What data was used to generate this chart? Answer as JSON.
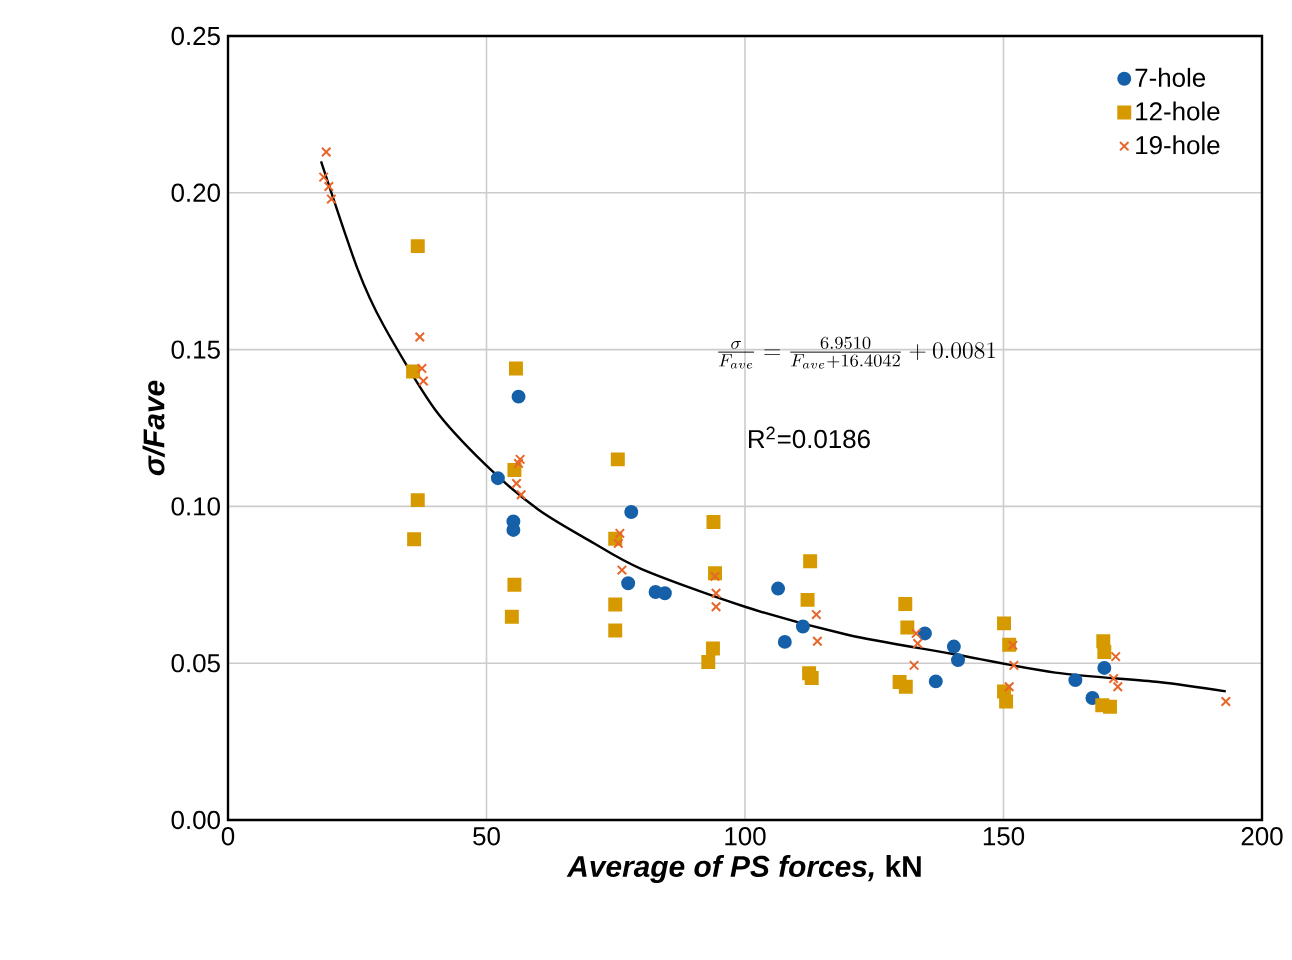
{
  "chart_data": {
    "type": "scatter",
    "xlabel": "*Average of PS forces,* kN",
    "ylabel": "σ/Fave",
    "xlim": [
      0,
      200
    ],
    "xticks": [
      0,
      50,
      100,
      150,
      200
    ],
    "ylim": [
      0,
      0.25
    ],
    "yticks": [
      {
        "value": 0,
        "label": "0.00"
      },
      {
        "value": 0.05,
        "label": "0.05"
      },
      {
        "value": 0.1,
        "label": "0.10"
      },
      {
        "value": 0.15,
        "label": "0.15"
      },
      {
        "value": 0.2,
        "label": "0.20"
      },
      {
        "value": 0.25,
        "label": "0.25"
      }
    ],
    "grid": true,
    "legend": "top right",
    "annotations": [
      "\\frac{\\sigma}{F_{ave}}=\\frac{6.9510}{F_{ave}+16.4042}+0.0081",
      "R$^{2}$=0.0186"
    ],
    "series": [
      {
        "name": "7-hole",
        "marker": "circle",
        "color": "#1560a8",
        "x": [
          56.2,
          52.2,
          55.2,
          55.2,
          78,
          77.4,
          82.7,
          84.5,
          106.4,
          107.7,
          111.2,
          134.8,
          136.9,
          140.4,
          141.2,
          163.9,
          167.2,
          169.5
        ],
        "values": [
          0.135,
          0.109,
          0.0952,
          0.0925,
          0.0982,
          0.0755,
          0.0727,
          0.0723,
          0.0738,
          0.0568,
          0.0617,
          0.0595,
          0.0442,
          0.0553,
          0.051,
          0.0446,
          0.0389,
          0.0485
        ]
      },
      {
        "name": "12-hole",
        "marker": "square",
        "color": "#d69a00",
        "x": [
          36.7,
          35.8,
          55.7,
          75.4,
          36.7,
          36,
          55.4,
          55.4,
          54.9,
          74.9,
          74.9,
          74.9,
          93.9,
          94.2,
          93.8,
          92.9,
          112.6,
          112.1,
          112.4,
          112.9,
          131,
          131.4,
          129.9,
          131.1,
          150.1,
          151.1,
          150.1,
          150.5,
          169.3,
          169.5,
          169.1,
          170.6
        ],
        "values": [
          0.183,
          0.143,
          0.144,
          0.115,
          0.102,
          0.0895,
          0.1116,
          0.075,
          0.0648,
          0.0897,
          0.0687,
          0.0604,
          0.095,
          0.0787,
          0.0547,
          0.0504,
          0.0825,
          0.0702,
          0.0468,
          0.0453,
          0.0689,
          0.0614,
          0.044,
          0.0425,
          0.0627,
          0.0559,
          0.041,
          0.0378,
          0.057,
          0.0536,
          0.0366,
          0.0361
        ]
      },
      {
        "name": "19-hole",
        "marker": "cross",
        "color": "#e8652a",
        "x": [
          19,
          18.5,
          19.5,
          20,
          37.1,
          37.5,
          37.8,
          56.5,
          56.2,
          55.8,
          56.7,
          75.8,
          75.5,
          76.2,
          94.2,
          94.4,
          94.4,
          113.8,
          114,
          133.1,
          133.4,
          132.7,
          151.8,
          152,
          151.1,
          171.7,
          171.3,
          172.1,
          193
        ],
        "values": [
          0.213,
          0.205,
          0.202,
          0.198,
          0.154,
          0.144,
          0.14,
          0.115,
          0.1137,
          0.1073,
          0.1037,
          0.0914,
          0.0882,
          0.0797,
          0.0777,
          0.0723,
          0.068,
          0.0655,
          0.057,
          0.0595,
          0.0563,
          0.0493,
          0.0557,
          0.0493,
          0.0425,
          0.0521,
          0.0451,
          0.0425,
          0.0378
        ]
      },
      {
        "type": "line",
        "marker": "none",
        "color": "#000000",
        "x": [
          18,
          25,
          30,
          40,
          50,
          60,
          70,
          80,
          100,
          120,
          140,
          160,
          180,
          193
        ],
        "values": [
          0.21,
          0.176,
          0.158,
          0.131,
          0.113,
          0.099,
          0.089,
          0.08,
          0.068,
          0.059,
          0.053,
          0.047,
          0.044,
          0.041
        ]
      }
    ]
  }
}
